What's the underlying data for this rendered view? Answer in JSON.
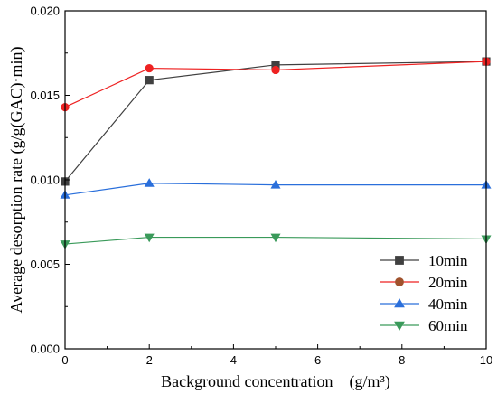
{
  "chart_data": {
    "type": "line",
    "xlabel": "Background concentration　(g/m³)",
    "ylabel": "Average desorption rate (g/g(GAC)·min)",
    "xlim": [
      0,
      10
    ],
    "ylim": [
      0,
      0.02
    ],
    "x_ticks": [
      "0",
      "2",
      "4",
      "6",
      "8",
      "10"
    ],
    "y_ticks": [
      "0.000",
      "0.005",
      "0.010",
      "0.015",
      "0.020"
    ],
    "grid": false,
    "legend_position": "bottom-right",
    "series": [
      {
        "name": "10min",
        "color": "#404040",
        "marker": "square",
        "x": [
          0,
          2,
          5,
          10
        ],
        "y": [
          0.0099,
          0.0159,
          0.0168,
          0.017
        ]
      },
      {
        "name": "20min",
        "color": "#ee2222",
        "marker": "circle",
        "x": [
          0,
          2,
          5,
          10
        ],
        "y": [
          0.0143,
          0.0166,
          0.0165,
          0.017
        ]
      },
      {
        "name": "40min",
        "color": "#2a6fdb",
        "marker": "triangle-up",
        "x": [
          0,
          2,
          5,
          10
        ],
        "y": [
          0.0091,
          0.0098,
          0.0097,
          0.0097
        ]
      },
      {
        "name": "60min",
        "color": "#3a9a5a",
        "marker": "triangle-down",
        "x": [
          0,
          2,
          5,
          10
        ],
        "y": [
          0.0062,
          0.0066,
          0.0066,
          0.0065
        ]
      }
    ],
    "legend_marker_colors": [
      "#404040",
      "#a0522d",
      "#2a6fdb",
      "#3a9a5a"
    ]
  }
}
